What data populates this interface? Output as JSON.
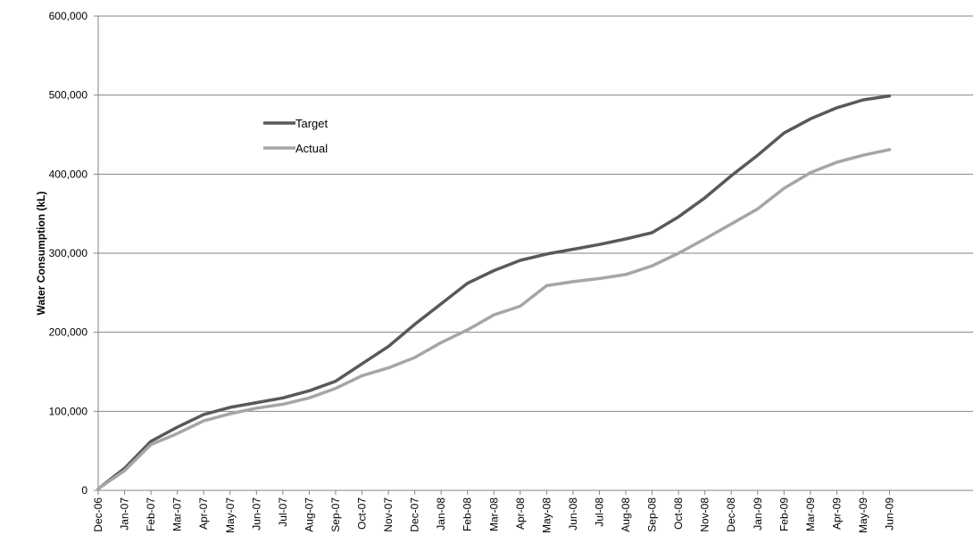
{
  "chart_data": {
    "type": "line",
    "title": "",
    "xlabel": "",
    "ylabel": "Water Consumption (kL)",
    "ylim": [
      0,
      600000
    ],
    "yticks": [
      0,
      100000,
      200000,
      300000,
      400000,
      500000,
      600000
    ],
    "ytick_labels": [
      "0",
      "100,000",
      "200,000",
      "300,000",
      "400,000",
      "500,000",
      "600,000"
    ],
    "grid": "horizontal",
    "legend_position": "upper-left",
    "categories": [
      "Dec-06",
      "Jan-07",
      "Feb-07",
      "Mar-07",
      "Apr-07",
      "May-07",
      "Jun-07",
      "Jul-07",
      "Aug-07",
      "Sep-07",
      "Oct-07",
      "Nov-07",
      "Dec-07",
      "Jan-08",
      "Feb-08",
      "Mar-08",
      "Apr-08",
      "May-08",
      "Jun-08",
      "Jul-08",
      "Aug-08",
      "Sep-08",
      "Oct-08",
      "Nov-08",
      "Dec-08",
      "Jan-09",
      "Feb-09",
      "Mar-09",
      "Apr-09",
      "May-09",
      "Jun-09"
    ],
    "series": [
      {
        "name": "Target",
        "color": "#595959",
        "values": [
          2000,
          28000,
          62000,
          80000,
          96000,
          105000,
          111000,
          117000,
          126000,
          138000,
          160000,
          182000,
          210000,
          236000,
          262000,
          278000,
          291000,
          299000,
          305000,
          311000,
          318000,
          326000,
          346000,
          370000,
          398000,
          424000,
          452000,
          470000,
          484000,
          494000,
          499000
        ]
      },
      {
        "name": "Actual",
        "color": "#a6a6a6",
        "values": [
          2000,
          25000,
          58000,
          72000,
          88000,
          97000,
          104000,
          109000,
          117000,
          129000,
          145000,
          155000,
          168000,
          187000,
          203000,
          222000,
          233000,
          259000,
          264000,
          268000,
          273000,
          284000,
          300000,
          318000,
          337000,
          356000,
          382000,
          402000,
          415000,
          424000,
          431000
        ]
      }
    ]
  }
}
